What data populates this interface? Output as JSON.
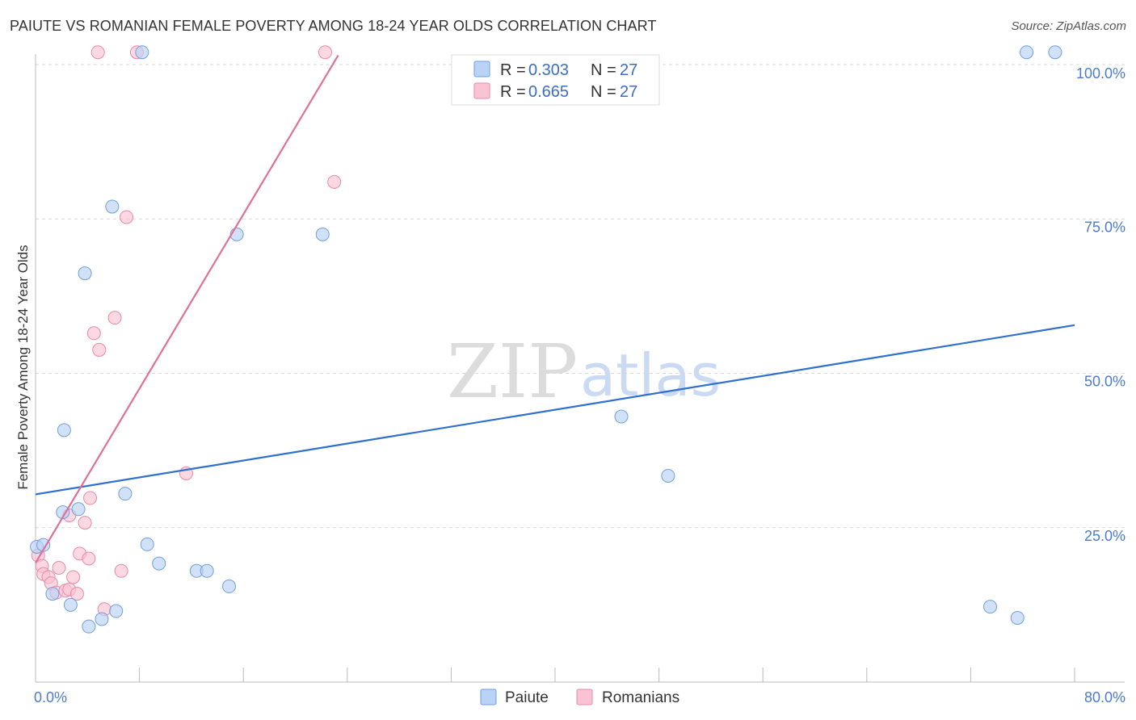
{
  "header": {
    "title": "PAIUTE VS ROMANIAN FEMALE POVERTY AMONG 18-24 YEAR OLDS CORRELATION CHART",
    "source": "Source: ZipAtlas.com"
  },
  "watermark": {
    "zip": "ZIP",
    "atlas": "atlas"
  },
  "colors": {
    "paiute_fill": "#b8d3f5",
    "paiute_stroke": "#6f9fdc",
    "paiute_line": "#2f6fd0",
    "romanian_fill": "#f9c3d3",
    "romanian_stroke": "#e88aa8",
    "romanian_line": "#e0709a",
    "grid": "#d8d8d8",
    "axis": "#bbbbbb",
    "tick_label": "#4a7bd0"
  },
  "legend": {
    "rows": [
      {
        "r_label": "R = ",
        "r_value": "0.303",
        "n_label": "N = ",
        "n_value": "27"
      },
      {
        "r_label": "R = ",
        "r_value": "0.665",
        "n_label": "N = ",
        "n_value": "27"
      }
    ]
  },
  "chart_data": {
    "type": "scatter",
    "title": "PAIUTE VS ROMANIAN FEMALE POVERTY AMONG 18-24 YEAR OLDS CORRELATION CHART",
    "xlabel": "",
    "ylabel": "Female Poverty Among 18-24 Year Olds",
    "xlim": [
      0,
      80
    ],
    "ylim": [
      0,
      102
    ],
    "x_tick_labels": [
      {
        "value": 0,
        "label": "0.0%"
      },
      {
        "value": 80,
        "label": "80.0%"
      }
    ],
    "y_tick_labels": [
      {
        "value": 25,
        "label": "25.0%"
      },
      {
        "value": 50,
        "label": "50.0%"
      },
      {
        "value": 75,
        "label": "75.0%"
      },
      {
        "value": 100,
        "label": "100.0%"
      }
    ],
    "x_minor_ticks": [
      0,
      8,
      16,
      24,
      32,
      40,
      48,
      56,
      64,
      72,
      80
    ],
    "y_grid": [
      25,
      50,
      75,
      100
    ],
    "legend_position": "top-center",
    "series": [
      {
        "name": "Paiute",
        "r": 0.303,
        "n": 27,
        "trend": {
          "x": [
            0,
            80
          ],
          "y": [
            30.4,
            57.8
          ]
        },
        "points": [
          {
            "x": 0.1,
            "y": 21.9
          },
          {
            "x": 0.6,
            "y": 22.2
          },
          {
            "x": 1.3,
            "y": 14.3
          },
          {
            "x": 2.1,
            "y": 27.5
          },
          {
            "x": 2.2,
            "y": 40.8
          },
          {
            "x": 2.7,
            "y": 12.5
          },
          {
            "x": 3.3,
            "y": 28.0
          },
          {
            "x": 3.8,
            "y": 66.2
          },
          {
            "x": 4.1,
            "y": 9.0
          },
          {
            "x": 5.1,
            "y": 10.2
          },
          {
            "x": 5.9,
            "y": 77.0
          },
          {
            "x": 6.2,
            "y": 11.5
          },
          {
            "x": 6.9,
            "y": 30.5
          },
          {
            "x": 8.2,
            "y": 102.0
          },
          {
            "x": 8.6,
            "y": 22.3
          },
          {
            "x": 9.5,
            "y": 19.2
          },
          {
            "x": 12.4,
            "y": 18.0
          },
          {
            "x": 13.2,
            "y": 18.0
          },
          {
            "x": 14.9,
            "y": 15.5
          },
          {
            "x": 15.5,
            "y": 72.5
          },
          {
            "x": 22.1,
            "y": 72.5
          },
          {
            "x": 45.1,
            "y": 43.0
          },
          {
            "x": 48.7,
            "y": 33.4
          },
          {
            "x": 73.5,
            "y": 12.2
          },
          {
            "x": 75.6,
            "y": 10.4
          },
          {
            "x": 76.3,
            "y": 102.0
          },
          {
            "x": 78.5,
            "y": 102.0
          }
        ]
      },
      {
        "name": "Romanians",
        "r": 0.665,
        "n": 27,
        "trend": {
          "x": [
            0,
            23.3
          ],
          "y": [
            19.3,
            101.5
          ]
        },
        "points": [
          {
            "x": 0.2,
            "y": 20.5
          },
          {
            "x": 0.5,
            "y": 18.8
          },
          {
            "x": 0.6,
            "y": 17.5
          },
          {
            "x": 1.0,
            "y": 17.0
          },
          {
            "x": 1.2,
            "y": 16.0
          },
          {
            "x": 1.6,
            "y": 14.5
          },
          {
            "x": 1.8,
            "y": 18.5
          },
          {
            "x": 2.3,
            "y": 14.8
          },
          {
            "x": 2.6,
            "y": 15.0
          },
          {
            "x": 2.6,
            "y": 27.0
          },
          {
            "x": 2.9,
            "y": 17.0
          },
          {
            "x": 3.2,
            "y": 14.3
          },
          {
            "x": 3.4,
            "y": 20.8
          },
          {
            "x": 3.8,
            "y": 25.8
          },
          {
            "x": 4.1,
            "y": 20.0
          },
          {
            "x": 4.2,
            "y": 29.8
          },
          {
            "x": 4.5,
            "y": 56.5
          },
          {
            "x": 4.8,
            "y": 102.0
          },
          {
            "x": 4.9,
            "y": 53.8
          },
          {
            "x": 5.3,
            "y": 11.8
          },
          {
            "x": 6.1,
            "y": 59.0
          },
          {
            "x": 6.6,
            "y": 18.0
          },
          {
            "x": 7.0,
            "y": 75.3
          },
          {
            "x": 7.8,
            "y": 102.0
          },
          {
            "x": 11.6,
            "y": 33.8
          },
          {
            "x": 22.3,
            "y": 102.0
          },
          {
            "x": 23.0,
            "y": 81.0
          }
        ]
      }
    ]
  }
}
